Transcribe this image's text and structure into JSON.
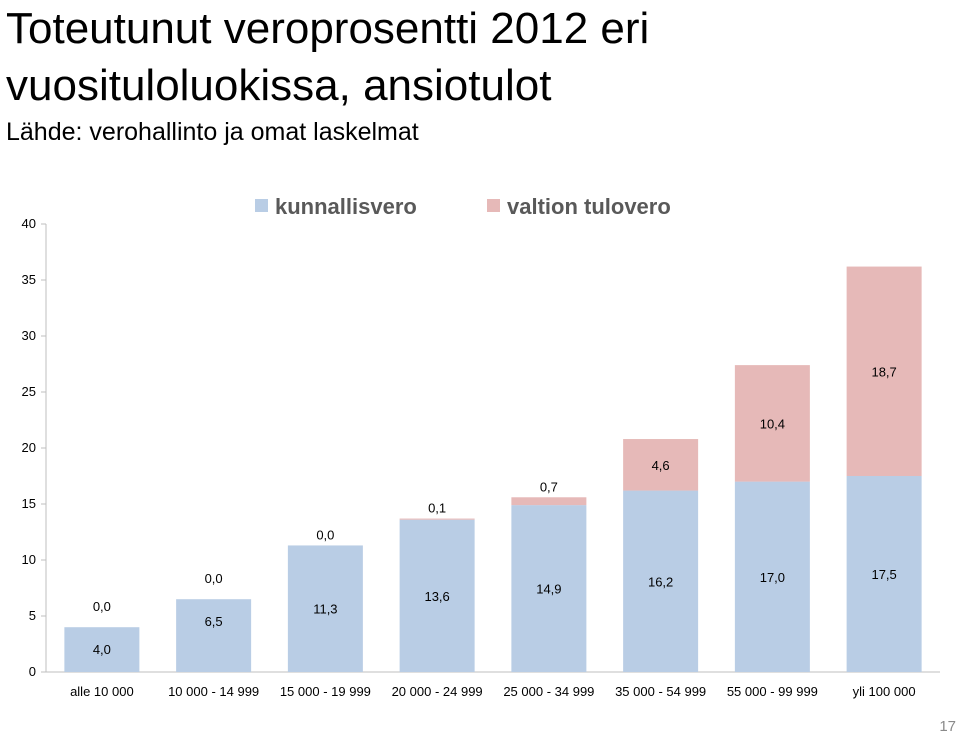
{
  "slide": {
    "title": "Toteutunut veroprosentti 2012 eri vuosituloluokissa, ansiotulot",
    "subtitle": "Lähde: verohallinto ja omat laskelmat",
    "page_number": "17"
  },
  "colors": {
    "kunnallisvero": "#b9cde5",
    "valtion_tulovero": "#e6b9b8",
    "axis": "#bfbfbf",
    "legend_text": "#595959"
  },
  "chart_data": {
    "type": "bar",
    "stacked": true,
    "categories": [
      "alle 10 000",
      "10 000 - 14 999",
      "15 000 - 19 999",
      "20 000 - 24 999",
      "25 000 - 34 999",
      "35 000 - 54 999",
      "55 000 - 99 999",
      "yli 100 000"
    ],
    "series": [
      {
        "name": "kunnallisvero",
        "values": [
          4.0,
          6.5,
          11.3,
          13.6,
          14.9,
          16.2,
          17.0,
          17.5
        ],
        "labels": [
          "4,0",
          "6,5",
          "11,3",
          "13,6",
          "14,9",
          "16,2",
          "17,0",
          "17,5"
        ]
      },
      {
        "name": "valtion tulovero",
        "values": [
          0.0,
          0.0,
          0.0,
          0.1,
          0.7,
          4.6,
          10.4,
          18.7
        ],
        "labels": [
          "0,0",
          "0,0",
          "0,0",
          "0,1",
          "0,7",
          "4,6",
          "10,4",
          "18,7"
        ]
      }
    ],
    "yticks": [
      0,
      5,
      10,
      15,
      20,
      25,
      30,
      35,
      40
    ],
    "ylim": [
      0,
      40
    ],
    "legend_position": "top",
    "grid": false
  }
}
